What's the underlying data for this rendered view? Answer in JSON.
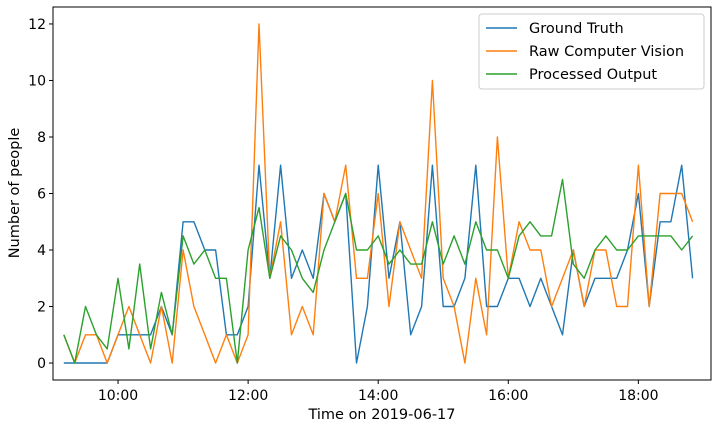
{
  "chart_data": {
    "type": "line",
    "xlabel": "Time on 2019-06-17",
    "ylabel": "Number of people",
    "xlim": [
      "09:00",
      "19:07"
    ],
    "ylim": [
      -0.6,
      12.6
    ],
    "x_ticks": [
      "10:00",
      "12:00",
      "14:00",
      "16:00",
      "18:00"
    ],
    "y_ticks": [
      0,
      2,
      4,
      6,
      8,
      10,
      12
    ],
    "grid": false,
    "legend_position": "top-right",
    "x": [
      "09:10",
      "09:20",
      "09:30",
      "09:40",
      "09:50",
      "10:00",
      "10:10",
      "10:20",
      "10:30",
      "10:40",
      "10:50",
      "11:00",
      "11:10",
      "11:20",
      "11:30",
      "11:40",
      "11:50",
      "12:00",
      "12:10",
      "12:20",
      "12:30",
      "12:40",
      "12:50",
      "13:00",
      "13:10",
      "13:20",
      "13:30",
      "13:40",
      "13:50",
      "14:00",
      "14:10",
      "14:20",
      "14:30",
      "14:40",
      "14:50",
      "15:00",
      "15:10",
      "15:20",
      "15:30",
      "15:40",
      "15:50",
      "16:00",
      "16:10",
      "16:20",
      "16:30",
      "16:40",
      "16:50",
      "17:00",
      "17:10",
      "17:20",
      "17:30",
      "17:40",
      "17:50",
      "18:00",
      "18:10",
      "18:20",
      "18:30",
      "18:40",
      "18:50"
    ],
    "series": [
      {
        "name": "Ground Truth",
        "color": "#1f77b4",
        "values": [
          0,
          0,
          0,
          0,
          0,
          1,
          1,
          1,
          1,
          2,
          1,
          5,
          5,
          4,
          4,
          1,
          1,
          2,
          7,
          3,
          7,
          3,
          4,
          3,
          6,
          5,
          6,
          0,
          2,
          7,
          3,
          5,
          1,
          2,
          7,
          2,
          2,
          3,
          7,
          2,
          2,
          3,
          3,
          2,
          3,
          2,
          1,
          4,
          2,
          3,
          3,
          3,
          4,
          6,
          2,
          5,
          5,
          7,
          3
        ]
      },
      {
        "name": "Raw Computer Vision",
        "color": "#ff7f0e",
        "values": [
          1,
          0,
          1,
          1,
          0,
          1,
          2,
          1,
          0,
          2,
          0,
          4,
          2,
          1,
          0,
          1,
          0,
          1,
          12,
          3,
          5,
          1,
          2,
          1,
          6,
          5,
          7,
          3,
          3,
          6,
          2,
          5,
          4,
          3,
          10,
          3,
          2,
          0,
          3,
          1,
          8,
          3,
          5,
          4,
          4,
          2,
          3,
          4,
          2,
          4,
          4,
          2,
          2,
          7,
          2,
          6,
          6,
          6,
          5
        ]
      },
      {
        "name": "Processed Output",
        "color": "#2ca02c",
        "values": [
          1,
          0,
          2,
          1,
          0.5,
          3,
          0.5,
          3.5,
          0.5,
          2.5,
          1,
          4.5,
          3.5,
          4,
          3,
          3,
          0,
          4,
          5.5,
          3,
          4.5,
          4,
          3,
          2.5,
          4,
          5,
          6,
          4,
          4,
          4.5,
          3.5,
          4,
          3.5,
          3.5,
          5,
          3.5,
          4.5,
          3.5,
          5,
          4,
          4,
          3,
          4.5,
          5,
          4.5,
          4.5,
          6.5,
          3.5,
          3,
          4,
          4.5,
          4,
          4,
          4.5,
          4.5,
          4.5,
          4.5,
          4,
          4.5
        ]
      }
    ]
  }
}
